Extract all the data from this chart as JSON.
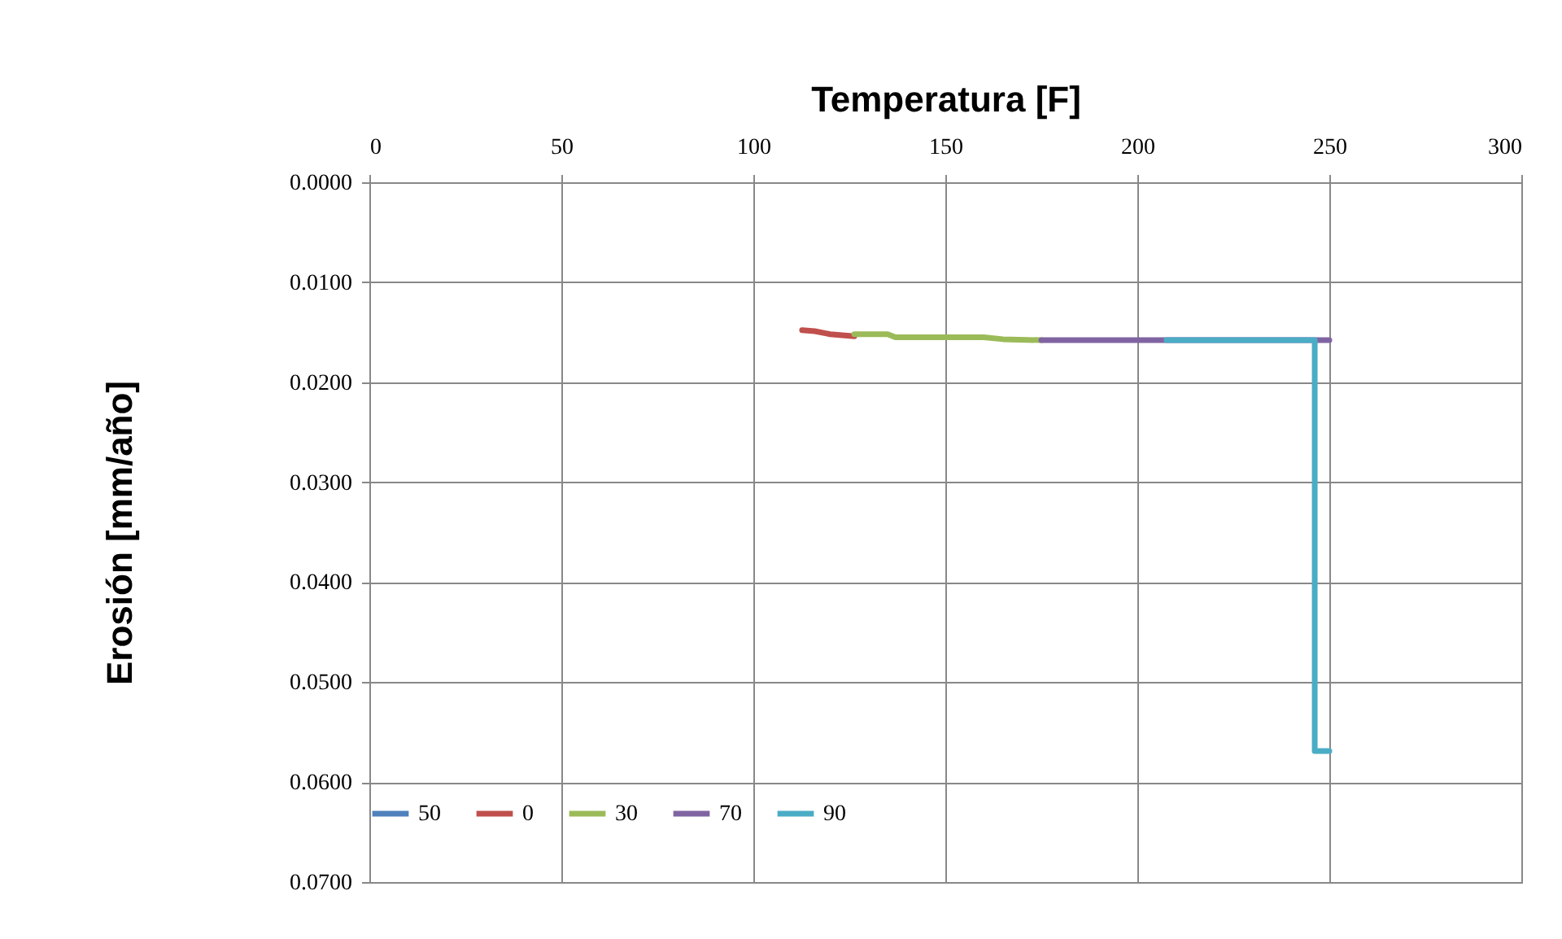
{
  "chart_data": {
    "type": "line",
    "xlabel": "Temperatura [F]",
    "ylabel": "Erosión [mm/año]",
    "xlim": [
      0,
      300
    ],
    "xticks": [
      0,
      50,
      100,
      150,
      200,
      250,
      300
    ],
    "ylim": [
      0.07,
      0
    ],
    "yticks": [
      {
        "value": 0,
        "label": "0.0000"
      },
      {
        "value": 0.01,
        "label": "0.0100"
      },
      {
        "value": 0.02,
        "label": "0.0200"
      },
      {
        "value": 0.03,
        "label": "0.0300"
      },
      {
        "value": 0.04,
        "label": "0.0400"
      },
      {
        "value": 0.05,
        "label": "0.0500"
      },
      {
        "value": 0.06,
        "label": "0.0600"
      },
      {
        "value": 0.07,
        "label": "0.0700"
      }
    ],
    "grid": true,
    "legend": "bottom",
    "marker": "none",
    "line_style": "solid",
    "series": [
      {
        "name": "50",
        "color": "#4f81bd",
        "x": [
          null
        ],
        "values": [
          null
        ]
      },
      {
        "name": "0",
        "color": "#c0504d",
        "x": [
          112.7,
          116,
          120,
          126.3
        ],
        "values": [
          0.0148,
          0.0149,
          0.0152,
          0.0154
        ]
      },
      {
        "name": "30",
        "color": "#9bbb59",
        "x": [
          126.3,
          135,
          137,
          160,
          165,
          175
        ],
        "values": [
          0.0152,
          0.0152,
          0.0155,
          0.0155,
          0.0157,
          0.0158
        ]
      },
      {
        "name": "70",
        "color": "#8064a2",
        "x": [
          175,
          250
        ],
        "values": [
          0.0158,
          0.0158
        ]
      },
      {
        "name": "90",
        "color": "#4bacc6",
        "x": [
          207.6,
          246.2,
          246.2,
          250
        ],
        "values": [
          0.0158,
          0.0158,
          0.0569,
          0.0569
        ]
      }
    ]
  }
}
